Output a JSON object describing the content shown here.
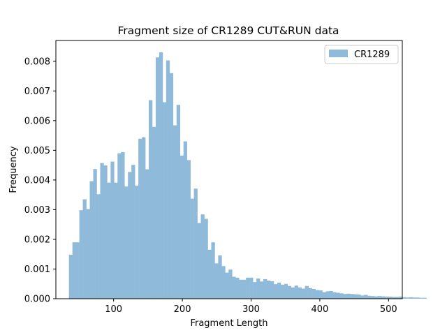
{
  "chart_data": {
    "type": "bar",
    "title": "Fragment size of CR1289 CUT&RUN data",
    "xlabel": "Fragment Length",
    "ylabel": "Frequency",
    "xlim": [
      16,
      520
    ],
    "ylim": [
      0,
      0.0087
    ],
    "xticks": [
      100,
      200,
      300,
      400,
      500
    ],
    "yticks": [
      0.0,
      0.001,
      0.002,
      0.003,
      0.004,
      0.005,
      0.006,
      0.007,
      0.008
    ],
    "ytick_labels": [
      "0.000",
      "0.001",
      "0.002",
      "0.003",
      "0.004",
      "0.005",
      "0.006",
      "0.007",
      "0.008"
    ],
    "color": "#8fbad9",
    "legend": {
      "position": "top-right",
      "entries": [
        "CR1289"
      ]
    },
    "series": [
      {
        "name": "CR1289",
        "bin_width": 5.05,
        "bin_start": 35,
        "values": [
          0.00148,
          0.0019,
          0.0019,
          0.00298,
          0.00335,
          0.00302,
          0.00396,
          0.00437,
          0.00352,
          0.00457,
          0.00449,
          0.00391,
          0.00462,
          0.00391,
          0.0049,
          0.00494,
          0.00378,
          0.00427,
          0.00451,
          0.00381,
          0.00539,
          0.00544,
          0.00436,
          0.00669,
          0.00579,
          0.00813,
          0.0083,
          0.00662,
          0.00803,
          0.0076,
          0.00584,
          0.00653,
          0.00482,
          0.0053,
          0.00467,
          0.00337,
          0.00371,
          0.00255,
          0.00284,
          0.00269,
          0.00165,
          0.0019,
          0.00119,
          0.00146,
          0.0011,
          0.00088,
          0.00098,
          0.00074,
          0.00071,
          0.00064,
          0.00064,
          0.00071,
          0.00071,
          0.00056,
          0.00068,
          0.00058,
          0.00066,
          0.00061,
          0.00059,
          0.00049,
          0.00054,
          0.00047,
          0.0005,
          0.00043,
          0.00038,
          0.00044,
          0.00038,
          0.00034,
          0.00043,
          0.00036,
          0.00033,
          0.00029,
          0.00028,
          0.00022,
          0.00025,
          0.00026,
          0.00022,
          0.0002,
          0.00018,
          0.00016,
          0.00017,
          0.00016,
          0.00015,
          0.00014,
          0.00011,
          0.00013,
          0.0001,
          9e-05,
          8e-05,
          9e-05,
          8e-05,
          7e-05,
          7e-05,
          6e-05,
          6e-05,
          7e-05,
          5e-05,
          4e-05,
          5e-05,
          4e-05,
          4e-05,
          3e-05,
          3e-05
        ]
      }
    ]
  }
}
